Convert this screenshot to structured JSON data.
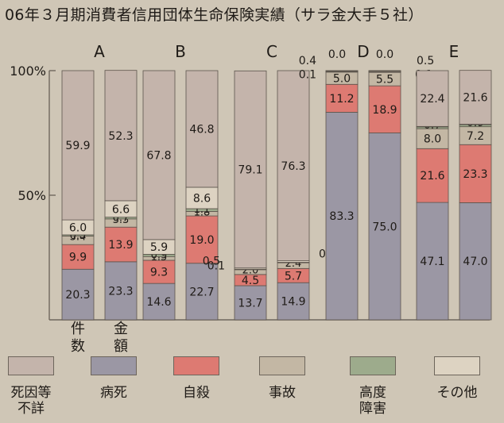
{
  "title": "06年３月期消費者信用団体生命保険実績（サラ金大手５社）",
  "chart_data": {
    "type": "bar",
    "stacked": true,
    "percent": true,
    "ylim": [
      0,
      100
    ],
    "y_ticks": [
      "100%",
      "50%"
    ],
    "groups": [
      "A",
      "B",
      "C",
      "D",
      "E"
    ],
    "bar_labels": [
      "件数",
      "金額"
    ],
    "series": [
      {
        "name": "病死",
        "color": "#9b97a4"
      },
      {
        "name": "自殺",
        "color": "#dd7a72"
      },
      {
        "name": "事故",
        "color": "#c3b7a4"
      },
      {
        "name": "高度障害",
        "color": "#9dab8c"
      },
      {
        "name": "その他",
        "color": "#ddd3c2"
      },
      {
        "name": "死因等不詳",
        "color": "#c4b4ab"
      }
    ],
    "bars": [
      {
        "group": "A",
        "values": [
          20.3,
          9.9,
          3.4,
          0.5,
          6.0,
          59.9
        ]
      },
      {
        "group": "A",
        "values": [
          23.3,
          13.9,
          3.3,
          0.7,
          6.6,
          52.3
        ]
      },
      {
        "group": "B",
        "values": [
          14.6,
          9.3,
          1.5,
          0.9,
          5.9,
          67.8
        ]
      },
      {
        "group": "B",
        "values": [
          22.7,
          19.0,
          1.8,
          1.1,
          8.6,
          46.8
        ]
      },
      {
        "group": "C",
        "values": [
          13.7,
          4.5,
          2.0,
          0.1,
          0.5,
          79.1
        ]
      },
      {
        "group": "C",
        "values": [
          14.9,
          5.7,
          2.4,
          0.1,
          0.6,
          76.3
        ]
      },
      {
        "group": "D",
        "values": [
          83.3,
          11.2,
          5.0,
          0.1,
          0.4,
          0.0
        ]
      },
      {
        "group": "D",
        "values": [
          75.0,
          18.9,
          5.5,
          0.1,
          0.5,
          0.0
        ]
      },
      {
        "group": "E",
        "values": [
          47.1,
          21.6,
          8.0,
          0.7,
          0.2,
          22.4
        ]
      },
      {
        "group": "E",
        "values": [
          47.0,
          23.3,
          7.2,
          0.9,
          0.1,
          21.6
        ]
      }
    ]
  },
  "legend": [
    {
      "label": "死因等\n不詳",
      "color": "#c4b4ab"
    },
    {
      "label": "病死",
      "color": "#9b97a4"
    },
    {
      "label": "自殺",
      "color": "#dd7a72"
    },
    {
      "label": "事故",
      "color": "#c3b7a4"
    },
    {
      "label": "高度\n障害",
      "color": "#9dab8c"
    },
    {
      "label": "その他",
      "color": "#ddd3c2"
    }
  ]
}
